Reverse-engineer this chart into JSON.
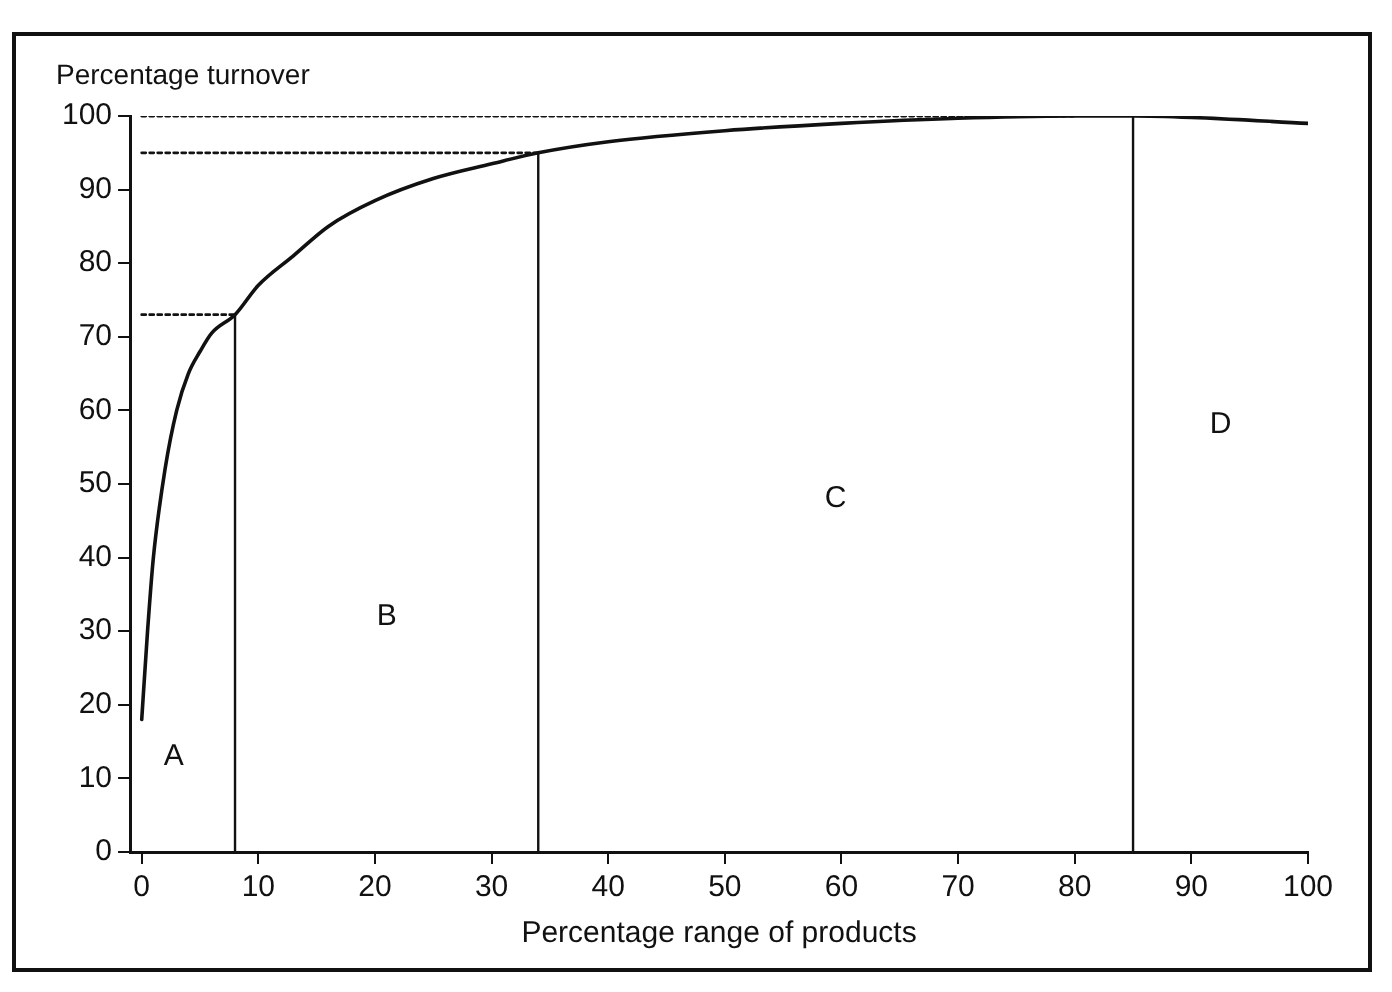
{
  "chart_data": {
    "type": "line",
    "xlabel": "Percentage range of products",
    "ylabel": "Percentage turnover",
    "xlim": [
      -1,
      100
    ],
    "xticks": [
      0,
      10,
      20,
      30,
      40,
      50,
      60,
      70,
      80,
      90,
      100
    ],
    "ylim": [
      0,
      100
    ],
    "yticks": [
      0,
      10,
      20,
      30,
      40,
      50,
      60,
      70,
      80,
      90,
      100
    ],
    "grid": false,
    "legend": false,
    "marker": "none",
    "line_style": "solid",
    "series": [
      {
        "color": "#111111",
        "x": [
          0,
          0.5,
          1,
          2,
          3,
          4,
          5,
          6,
          8,
          10,
          13,
          16,
          20,
          25,
          30,
          34,
          40,
          50,
          60,
          70,
          80,
          85,
          90,
          100
        ],
        "values": [
          18,
          30,
          40,
          52,
          60,
          65,
          68,
          70.5,
          73,
          77,
          81,
          85,
          88.5,
          91.5,
          93.5,
          95,
          96.5,
          98,
          99,
          99.7,
          100,
          100,
          99.8,
          99
        ]
      },
      {
        "color": "#111111",
        "line_style": "dotted",
        "x": [
          0,
          8
        ],
        "values": [
          73,
          73
        ]
      },
      {
        "color": "#111111",
        "line_style": "dotted",
        "x": [
          0,
          34
        ],
        "values": [
          95,
          95
        ]
      },
      {
        "color": "#111111",
        "line_style": "dotted",
        "x": [
          0,
          80
        ],
        "values": [
          100,
          100
        ]
      }
    ],
    "ref_lines": [
      {
        "axis": "x",
        "value": 8,
        "line_style": "solid",
        "color": "#111111"
      },
      {
        "axis": "x",
        "value": 34,
        "line_style": "solid",
        "color": "#111111"
      },
      {
        "axis": "x",
        "value": 85,
        "line_style": "solid",
        "color": "#111111"
      }
    ],
    "annotations": [
      "A",
      "B",
      "C",
      "D"
    ]
  }
}
